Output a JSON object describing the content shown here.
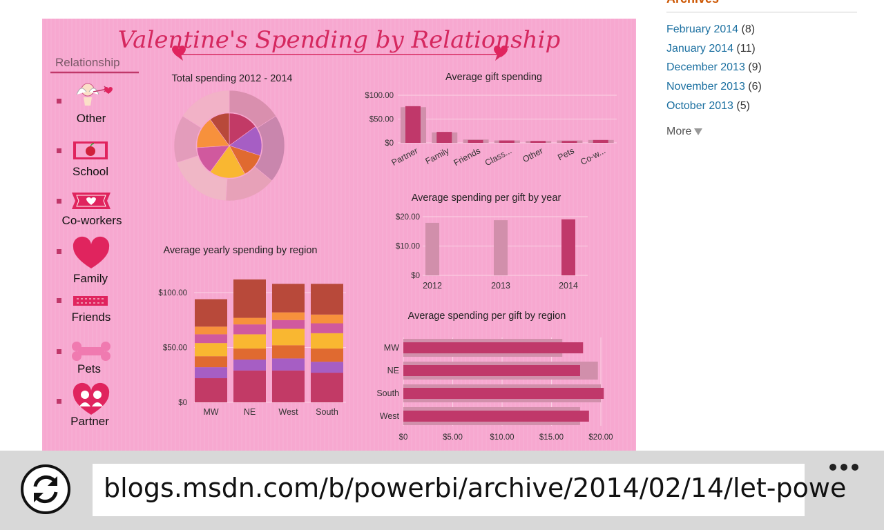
{
  "dashboard": {
    "title": "Valentine's Spending by Relationship",
    "legend": {
      "header": "Relationship",
      "items": [
        {
          "label": "Other",
          "icon": "cupid-icon"
        },
        {
          "label": "School",
          "icon": "apple-card-icon"
        },
        {
          "label": "Co-workers",
          "icon": "heart-ticket-icon"
        },
        {
          "label": "Family",
          "icon": "heart-icon"
        },
        {
          "label": "Friends",
          "icon": "banner-icon"
        },
        {
          "label": "Pets",
          "icon": "bone-icon"
        },
        {
          "label": "Partner",
          "icon": "couple-heart-icon"
        }
      ]
    },
    "colors": {
      "background": "#f7a8d0",
      "primary_bar": "#c0386a",
      "ghost_bar": "#d18fab",
      "title": "#d5285f"
    }
  },
  "chart_data": [
    {
      "type": "pie",
      "title": "Total spending 2012 - 2014",
      "inner_slices": [
        {
          "value": 15,
          "color": "#c23a66"
        },
        {
          "value": 15,
          "color": "#a65ec4"
        },
        {
          "value": 12,
          "color": "#e06a30"
        },
        {
          "value": 18,
          "color": "#f9b731"
        },
        {
          "value": 14,
          "color": "#d0599e"
        },
        {
          "value": 16,
          "color": "#f7913c"
        },
        {
          "value": 10,
          "color": "#b8493a"
        }
      ],
      "outer_slices": [
        {
          "value": 16,
          "color": "#d98fae"
        },
        {
          "value": 20,
          "color": "#c986ad"
        },
        {
          "value": 15,
          "color": "#e7a1b8"
        },
        {
          "value": 19,
          "color": "#f0b7c6"
        },
        {
          "value": 14,
          "color": "#e39cbb"
        },
        {
          "value": 16,
          "color": "#f2b2c7"
        }
      ]
    },
    {
      "type": "bar",
      "title": "Average gift spending",
      "categories": [
        "Partner",
        "Family",
        "Friends",
        "Class...",
        "Other",
        "Pets",
        "Co-w..."
      ],
      "series": [
        {
          "values": [
            75,
            22,
            7,
            5,
            4,
            5,
            6
          ]
        },
        {
          "values": [
            77,
            23,
            6,
            5,
            4,
            4,
            6
          ]
        }
      ],
      "yticks": [
        "$100.00",
        "$50.00",
        "$0"
      ],
      "ylim": [
        0,
        100
      ]
    },
    {
      "type": "bar",
      "title": "Average spending per gift by year",
      "categories": [
        "2012",
        "2013",
        "2014"
      ],
      "series": [
        {
          "values": [
            17.9,
            18.8,
            19.1
          ]
        }
      ],
      "yticks": [
        "$20.00",
        "$10.00",
        "$0"
      ],
      "ylim": [
        0,
        20
      ]
    },
    {
      "type": "bar",
      "title": "Average yearly spending by region",
      "categories": [
        "MW",
        "NE",
        "West",
        "South"
      ],
      "stack_colors": [
        "#c23a66",
        "#a65ec4",
        "#e06a30",
        "#f9b731",
        "#d0599e",
        "#f7913c",
        "#b8493a"
      ],
      "stacks": [
        [
          22,
          10,
          10,
          12,
          8,
          7,
          25
        ],
        [
          29,
          10,
          10,
          13,
          9,
          6,
          35
        ],
        [
          29,
          11,
          12,
          15,
          8,
          7,
          26
        ],
        [
          27,
          10,
          12,
          14,
          9,
          8,
          28
        ]
      ],
      "yticks": [
        "$100.00",
        "$50.00",
        "$0"
      ],
      "ylim": [
        0,
        115
      ]
    },
    {
      "type": "bar",
      "orientation": "horizontal",
      "title": "Average spending per gift by region",
      "categories": [
        "MW",
        "NE",
        "South",
        "West"
      ],
      "series": [
        {
          "values": [
            18.2,
            17.9,
            20.3,
            18.8
          ]
        },
        {
          "values": [
            16.1,
            19.7,
            20.0,
            17.9
          ]
        }
      ],
      "xticks": [
        "$0",
        "$5.00",
        "$10.00",
        "$15.00",
        "$20.00"
      ],
      "xlim": [
        0,
        20
      ]
    }
  ],
  "sidebar": {
    "archives_title": "Archives",
    "archives": [
      {
        "month": "February 2014",
        "count": "(8)"
      },
      {
        "month": "January 2014",
        "count": "(11)"
      },
      {
        "month": "December 2013",
        "count": "(9)"
      },
      {
        "month": "November 2013",
        "count": "(6)"
      },
      {
        "month": "October 2013",
        "count": "(5)"
      }
    ],
    "more_label": "More"
  },
  "address_bar": {
    "url": "blogs.msdn.com/b/powerbi/archive/2014/02/14/let-powe"
  }
}
